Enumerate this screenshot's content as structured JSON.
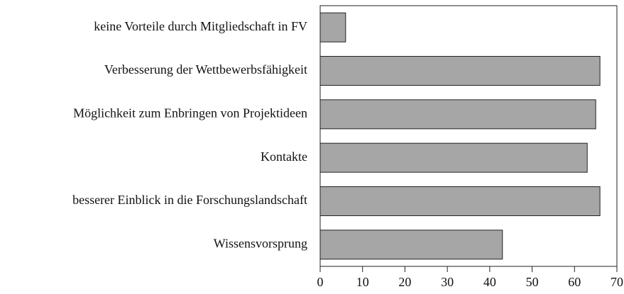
{
  "chart_data": {
    "type": "bar",
    "orientation": "horizontal",
    "categories": [
      "keine Vorteile durch Mitgliedschaft in FV",
      "Verbesserung der Wettbewerbsfähigkeit",
      "Möglichkeit zum Enbringen von Projektideen",
      "Kontakte",
      "besserer Einblick in die Forschungslandschaft",
      "Wissensvorsprung"
    ],
    "values": [
      6,
      66,
      65,
      63,
      66,
      43
    ],
    "color": "#a6a6a6",
    "xlim": [
      0,
      70
    ],
    "xticks": [
      0,
      10,
      20,
      30,
      40,
      50,
      60,
      70
    ],
    "grid": false
  }
}
